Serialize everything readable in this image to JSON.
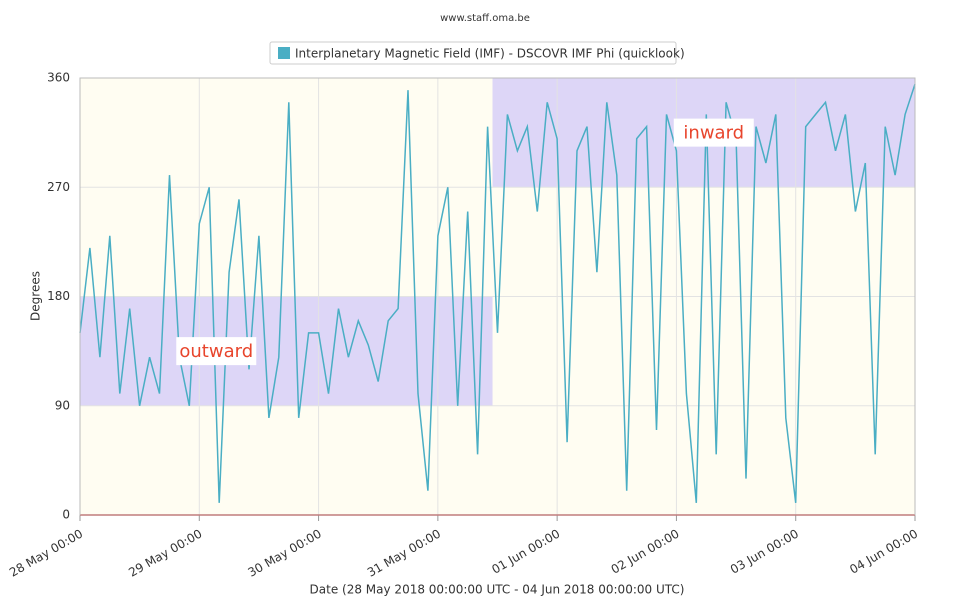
{
  "chart_data": {
    "type": "line",
    "header": "www.staff.oma.be",
    "y_label": "Degrees",
    "x_label": "Date (28 May 2018 00:00:00 UTC - 04 Jun 2018 00:00:00 UTC)",
    "xlim": [
      "2018-05-28T00:00",
      "2018-06-04T00:00"
    ],
    "xticks": [
      {
        "value": "2018-05-28T00:00",
        "label": "28 May 00:00"
      },
      {
        "value": "2018-05-29T00:00",
        "label": "29 May 00:00"
      },
      {
        "value": "2018-05-30T00:00",
        "label": "30 May 00:00"
      },
      {
        "value": "2018-05-31T00:00",
        "label": "31 May 00:00"
      },
      {
        "value": "2018-06-01T00:00",
        "label": "01 Jun 00:00"
      },
      {
        "value": "2018-06-02T00:00",
        "label": "02 Jun 00:00"
      },
      {
        "value": "2018-06-03T00:00",
        "label": "03 Jun 00:00"
      },
      {
        "value": "2018-06-04T00:00",
        "label": "04 Jun 00:00"
      }
    ],
    "ylim": [
      0,
      360
    ],
    "yticks": [
      0,
      90,
      180,
      270,
      360
    ],
    "grid": true,
    "bands": [
      {
        "label": "outward",
        "x": [
          "2018-05-28T00:00",
          "2018-05-31T11:00"
        ],
        "y": [
          90,
          180
        ],
        "color": "#ddd6f7"
      },
      {
        "label": "inward",
        "x": [
          "2018-05-31T11:00",
          "2018-06-04T00:00"
        ],
        "y": [
          270,
          360
        ],
        "color": "#ddd6f7"
      }
    ],
    "x": [
      "2018-05-28T00:00",
      "2018-05-28T02:00",
      "2018-05-28T04:00",
      "2018-05-28T06:00",
      "2018-05-28T08:00",
      "2018-05-28T10:00",
      "2018-05-28T12:00",
      "2018-05-28T14:00",
      "2018-05-28T16:00",
      "2018-05-28T18:00",
      "2018-05-28T20:00",
      "2018-05-28T22:00",
      "2018-05-29T00:00",
      "2018-05-29T02:00",
      "2018-05-29T04:00",
      "2018-05-29T06:00",
      "2018-05-29T08:00",
      "2018-05-29T10:00",
      "2018-05-29T12:00",
      "2018-05-29T14:00",
      "2018-05-29T16:00",
      "2018-05-29T18:00",
      "2018-05-29T20:00",
      "2018-05-29T22:00",
      "2018-05-30T00:00",
      "2018-05-30T02:00",
      "2018-05-30T04:00",
      "2018-05-30T06:00",
      "2018-05-30T08:00",
      "2018-05-30T10:00",
      "2018-05-30T12:00",
      "2018-05-30T14:00",
      "2018-05-30T16:00",
      "2018-05-30T18:00",
      "2018-05-30T20:00",
      "2018-05-30T22:00",
      "2018-05-31T00:00",
      "2018-05-31T02:00",
      "2018-05-31T04:00",
      "2018-05-31T06:00",
      "2018-05-31T08:00",
      "2018-05-31T10:00",
      "2018-05-31T12:00",
      "2018-05-31T14:00",
      "2018-05-31T16:00",
      "2018-05-31T18:00",
      "2018-05-31T20:00",
      "2018-05-31T22:00",
      "2018-06-01T00:00",
      "2018-06-01T02:00",
      "2018-06-01T04:00",
      "2018-06-01T06:00",
      "2018-06-01T08:00",
      "2018-06-01T10:00",
      "2018-06-01T12:00",
      "2018-06-01T14:00",
      "2018-06-01T16:00",
      "2018-06-01T18:00",
      "2018-06-01T20:00",
      "2018-06-01T22:00",
      "2018-06-02T00:00",
      "2018-06-02T02:00",
      "2018-06-02T04:00",
      "2018-06-02T06:00",
      "2018-06-02T08:00",
      "2018-06-02T10:00",
      "2018-06-02T12:00",
      "2018-06-02T14:00",
      "2018-06-02T16:00",
      "2018-06-02T18:00",
      "2018-06-02T20:00",
      "2018-06-02T22:00",
      "2018-06-03T00:00",
      "2018-06-03T02:00",
      "2018-06-03T04:00",
      "2018-06-03T06:00",
      "2018-06-03T08:00",
      "2018-06-03T10:00",
      "2018-06-03T12:00",
      "2018-06-03T14:00",
      "2018-06-03T16:00",
      "2018-06-03T18:00",
      "2018-06-03T20:00",
      "2018-06-03T22:00",
      "2018-06-04T00:00"
    ],
    "series": [
      {
        "name": "Interplanetary Magnetic Field (IMF) - DSCOVR IMF Phi (quicklook)",
        "color": "#4aaec4",
        "values": [
          150,
          220,
          130,
          230,
          100,
          170,
          90,
          130,
          100,
          280,
          130,
          90,
          240,
          270,
          10,
          200,
          260,
          120,
          230,
          80,
          130,
          340,
          80,
          150,
          150,
          100,
          170,
          130,
          160,
          140,
          110,
          160,
          170,
          350,
          100,
          20,
          230,
          270,
          90,
          250,
          50,
          320,
          150,
          330,
          300,
          320,
          250,
          340,
          310,
          60,
          300,
          320,
          200,
          340,
          280,
          20,
          310,
          320,
          70,
          330,
          300,
          100,
          10,
          330,
          50,
          340,
          310,
          30,
          320,
          290,
          330,
          80,
          10,
          320,
          330,
          340,
          300,
          330,
          250,
          290,
          50,
          320,
          280,
          330,
          355
        ]
      }
    ]
  }
}
